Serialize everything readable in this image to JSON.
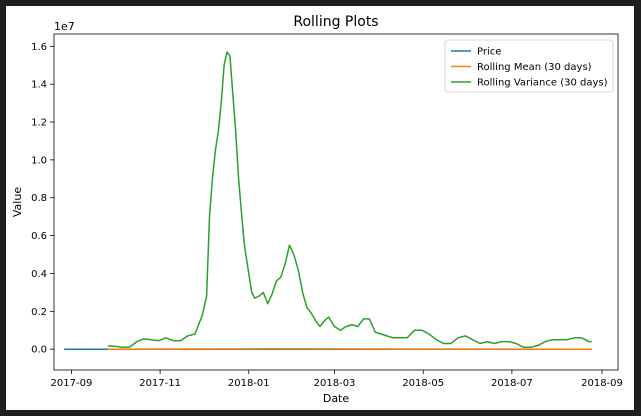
{
  "chart_data": {
    "type": "line",
    "title": "Rolling Plots",
    "xlabel": "Date",
    "ylabel": "Value",
    "y_offset_label": "1e7",
    "x_ticks": [
      "2017-09",
      "2017-11",
      "2018-01",
      "2018-03",
      "2018-05",
      "2018-07",
      "2018-09"
    ],
    "y_ticks": [
      "0.0",
      "0.2",
      "0.4",
      "0.6",
      "0.8",
      "1.0",
      "1.2",
      "1.4",
      "1.6"
    ],
    "xlim": [
      "2017-08-20",
      "2018-09-12"
    ],
    "ylim": [
      -0.11,
      1.665
    ],
    "legend_position": "top-right",
    "grid": false,
    "series": [
      {
        "name": "Price",
        "color": "#1f77b4",
        "points": [
          [
            "2017-08-27",
            0.0
          ],
          [
            "2017-09-26",
            0.0
          ],
          [
            "2018-08-25",
            0.0
          ]
        ]
      },
      {
        "name": "Rolling Mean (30 days)",
        "color": "#ff7f0e",
        "points": [
          [
            "2017-09-26",
            0.0
          ],
          [
            "2018-01-15",
            0.002
          ],
          [
            "2018-08-25",
            0.0
          ]
        ]
      },
      {
        "name": "Rolling Variance (30 days)",
        "color": "#2ca02c",
        "points": [
          [
            "2017-09-26",
            0.017
          ],
          [
            "2017-10-01",
            0.015
          ],
          [
            "2017-10-06",
            0.01
          ],
          [
            "2017-10-11",
            0.011
          ],
          [
            "2017-10-16",
            0.04
          ],
          [
            "2017-10-21",
            0.055
          ],
          [
            "2017-10-26",
            0.05
          ],
          [
            "2017-10-31",
            0.045
          ],
          [
            "2017-11-05",
            0.06
          ],
          [
            "2017-11-10",
            0.045
          ],
          [
            "2017-11-15",
            0.045
          ],
          [
            "2017-11-20",
            0.07
          ],
          [
            "2017-11-25",
            0.08
          ],
          [
            "2017-11-30",
            0.18
          ],
          [
            "2017-12-03",
            0.28
          ],
          [
            "2017-12-05",
            0.7
          ],
          [
            "2017-12-07",
            0.9
          ],
          [
            "2017-12-09",
            1.05
          ],
          [
            "2017-12-11",
            1.15
          ],
          [
            "2017-12-13",
            1.3
          ],
          [
            "2017-12-15",
            1.5
          ],
          [
            "2017-12-17",
            1.57
          ],
          [
            "2017-12-19",
            1.55
          ],
          [
            "2017-12-21",
            1.35
          ],
          [
            "2017-12-23",
            1.15
          ],
          [
            "2017-12-25",
            0.9
          ],
          [
            "2017-12-27",
            0.72
          ],
          [
            "2017-12-29",
            0.55
          ],
          [
            "2017-12-31",
            0.45
          ],
          [
            "2018-01-03",
            0.3
          ],
          [
            "2018-01-05",
            0.27
          ],
          [
            "2018-01-08",
            0.28
          ],
          [
            "2018-01-11",
            0.3
          ],
          [
            "2018-01-14",
            0.24
          ],
          [
            "2018-01-17",
            0.29
          ],
          [
            "2018-01-20",
            0.36
          ],
          [
            "2018-01-23",
            0.38
          ],
          [
            "2018-01-26",
            0.45
          ],
          [
            "2018-01-29",
            0.55
          ],
          [
            "2018-02-01",
            0.5
          ],
          [
            "2018-02-04",
            0.42
          ],
          [
            "2018-02-07",
            0.3
          ],
          [
            "2018-02-10",
            0.22
          ],
          [
            "2018-02-13",
            0.19
          ],
          [
            "2018-02-16",
            0.15
          ],
          [
            "2018-02-19",
            0.12
          ],
          [
            "2018-02-22",
            0.15
          ],
          [
            "2018-02-25",
            0.17
          ],
          [
            "2018-03-01",
            0.12
          ],
          [
            "2018-03-05",
            0.1
          ],
          [
            "2018-03-09",
            0.12
          ],
          [
            "2018-03-13",
            0.13
          ],
          [
            "2018-03-17",
            0.12
          ],
          [
            "2018-03-21",
            0.16
          ],
          [
            "2018-03-25",
            0.16
          ],
          [
            "2018-03-29",
            0.09
          ],
          [
            "2018-04-02",
            0.08
          ],
          [
            "2018-04-06",
            0.07
          ],
          [
            "2018-04-10",
            0.06
          ],
          [
            "2018-04-15",
            0.06
          ],
          [
            "2018-04-20",
            0.06
          ],
          [
            "2018-04-25",
            0.1
          ],
          [
            "2018-04-30",
            0.1
          ],
          [
            "2018-05-05",
            0.08
          ],
          [
            "2018-05-10",
            0.05
          ],
          [
            "2018-05-15",
            0.03
          ],
          [
            "2018-05-20",
            0.03
          ],
          [
            "2018-05-25",
            0.06
          ],
          [
            "2018-05-30",
            0.07
          ],
          [
            "2018-06-04",
            0.05
          ],
          [
            "2018-06-09",
            0.03
          ],
          [
            "2018-06-14",
            0.04
          ],
          [
            "2018-06-19",
            0.03
          ],
          [
            "2018-06-24",
            0.04
          ],
          [
            "2018-06-29",
            0.04
          ],
          [
            "2018-07-04",
            0.03
          ],
          [
            "2018-07-09",
            0.01
          ],
          [
            "2018-07-14",
            0.01
          ],
          [
            "2018-07-19",
            0.02
          ],
          [
            "2018-07-24",
            0.04
          ],
          [
            "2018-07-29",
            0.05
          ],
          [
            "2018-08-03",
            0.05
          ],
          [
            "2018-08-08",
            0.05
          ],
          [
            "2018-08-13",
            0.06
          ],
          [
            "2018-08-18",
            0.06
          ],
          [
            "2018-08-23",
            0.04
          ],
          [
            "2018-08-25",
            0.04
          ]
        ]
      }
    ]
  }
}
